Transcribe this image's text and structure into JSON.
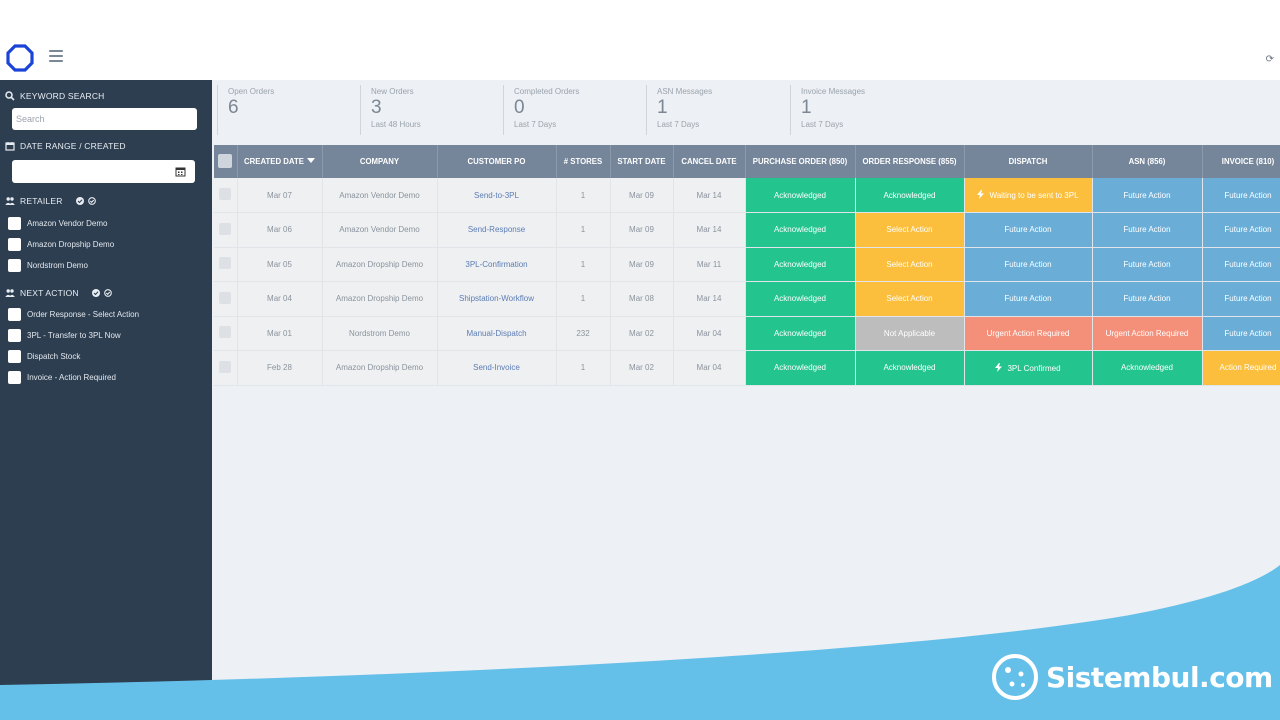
{
  "header": {
    "refresh_glyph": "⟳"
  },
  "sidebar": {
    "keyword_search": {
      "label": "KEYWORD SEARCH",
      "placeholder": "Search"
    },
    "date_range": {
      "label": "DATE RANGE / CREATED"
    },
    "retailer": {
      "label": "RETAILER",
      "items": [
        {
          "label": "Amazon Vendor Demo"
        },
        {
          "label": "Amazon Dropship Demo"
        },
        {
          "label": "Nordstrom Demo"
        }
      ]
    },
    "next_action": {
      "label": "NEXT ACTION",
      "items": [
        {
          "label": "Order Response - Select Action"
        },
        {
          "label": "3PL - Transfer to 3PL Now"
        },
        {
          "label": "Dispatch Stock"
        },
        {
          "label": "Invoice - Action Required"
        }
      ]
    }
  },
  "stats": [
    {
      "label": "Open Orders",
      "value": "6",
      "sub": ""
    },
    {
      "label": "New Orders",
      "value": "3",
      "sub": "Last 48 Hours"
    },
    {
      "label": "Completed Orders",
      "value": "0",
      "sub": "Last 7 Days"
    },
    {
      "label": "ASN Messages",
      "value": "1",
      "sub": "Last 7 Days"
    },
    {
      "label": "Invoice Messages",
      "value": "1",
      "sub": "Last 7 Days"
    }
  ],
  "table": {
    "headers": [
      "CREATED DATE",
      "COMPANY",
      "CUSTOMER PO",
      "# STORES",
      "START DATE",
      "CANCEL DATE",
      "PURCHASE ORDER (850)",
      "ORDER RESPONSE (855)",
      "DISPATCH",
      "ASN (856)",
      "INVOICE (810)"
    ],
    "rows": [
      {
        "created": "Mar 07",
        "company": "Amazon Vendor Demo",
        "po": "Send-to-3PL",
        "stores": "1",
        "start": "Mar 09",
        "cancel": "Mar 14",
        "po850": "Acknowledged",
        "or855": "Acknowledged",
        "dispatch": "Waiting to be sent to 3PL",
        "asn": "Future Action",
        "inv": "Future Action"
      },
      {
        "created": "Mar 06",
        "company": "Amazon Vendor Demo",
        "po": "Send-Response",
        "stores": "1",
        "start": "Mar 09",
        "cancel": "Mar 14",
        "po850": "Acknowledged",
        "or855": "Select Action",
        "dispatch": "Future Action",
        "asn": "Future Action",
        "inv": "Future Action"
      },
      {
        "created": "Mar 05",
        "company": "Amazon Dropship Demo",
        "po": "3PL-Confirmation",
        "stores": "1",
        "start": "Mar 09",
        "cancel": "Mar 11",
        "po850": "Acknowledged",
        "or855": "Select Action",
        "dispatch": "Future Action",
        "asn": "Future Action",
        "inv": "Future Action"
      },
      {
        "created": "Mar 04",
        "company": "Amazon Dropship Demo",
        "po": "Shipstation-Workflow",
        "stores": "1",
        "start": "Mar 08",
        "cancel": "Mar 14",
        "po850": "Acknowledged",
        "or855": "Select Action",
        "dispatch": "Future Action",
        "asn": "Future Action",
        "inv": "Future Action"
      },
      {
        "created": "Mar 01",
        "company": "Nordstrom Demo",
        "po": "Manual-Dispatch",
        "stores": "232",
        "start": "Mar 02",
        "cancel": "Mar 04",
        "po850": "Acknowledged",
        "or855": "Not Applicable",
        "dispatch": "Urgent Action Required",
        "asn": "Urgent Action Required",
        "inv": "Future Action"
      },
      {
        "created": "Feb 28",
        "company": "Amazon Dropship Demo",
        "po": "Send-Invoice",
        "stores": "1",
        "start": "Mar 02",
        "cancel": "Mar 04",
        "po850": "Acknowledged",
        "or855": "Acknowledged",
        "dispatch": "3PL Confirmed",
        "asn": "Acknowledged",
        "inv": "Action Required"
      }
    ]
  },
  "watermark": {
    "text": "Sistembul.com"
  },
  "colors": {
    "acknowledged": "#23c48e",
    "select_action": "#fbbf3d",
    "future_action": "#6aaed8",
    "urgent": "#f4907a",
    "not_applicable": "#bdbdbd",
    "sidebar": "#2d3e50",
    "header": "#75859a",
    "brand_blue": "#1a44d8"
  }
}
